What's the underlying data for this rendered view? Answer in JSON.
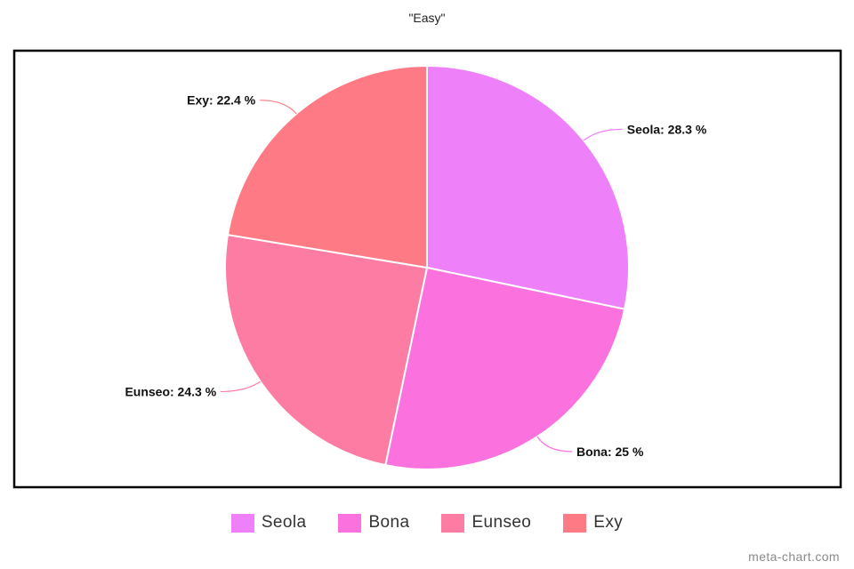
{
  "chart_data": {
    "type": "pie",
    "title": "\"Easy\"",
    "categories": [
      "Seola",
      "Bona",
      "Eunseo",
      "Exy"
    ],
    "values": [
      28.3,
      25,
      24.3,
      22.4
    ],
    "labels": [
      "Seola: 28.3 %",
      "Bona: 25 %",
      "Eunseo: 24.3 %",
      "Exy: 22.4 %"
    ],
    "colors": [
      "#ee80fa",
      "#fb72de",
      "#fc7ca3",
      "#fe7a85"
    ],
    "legend_placement": "bottom"
  },
  "watermark": "meta-chart.com"
}
